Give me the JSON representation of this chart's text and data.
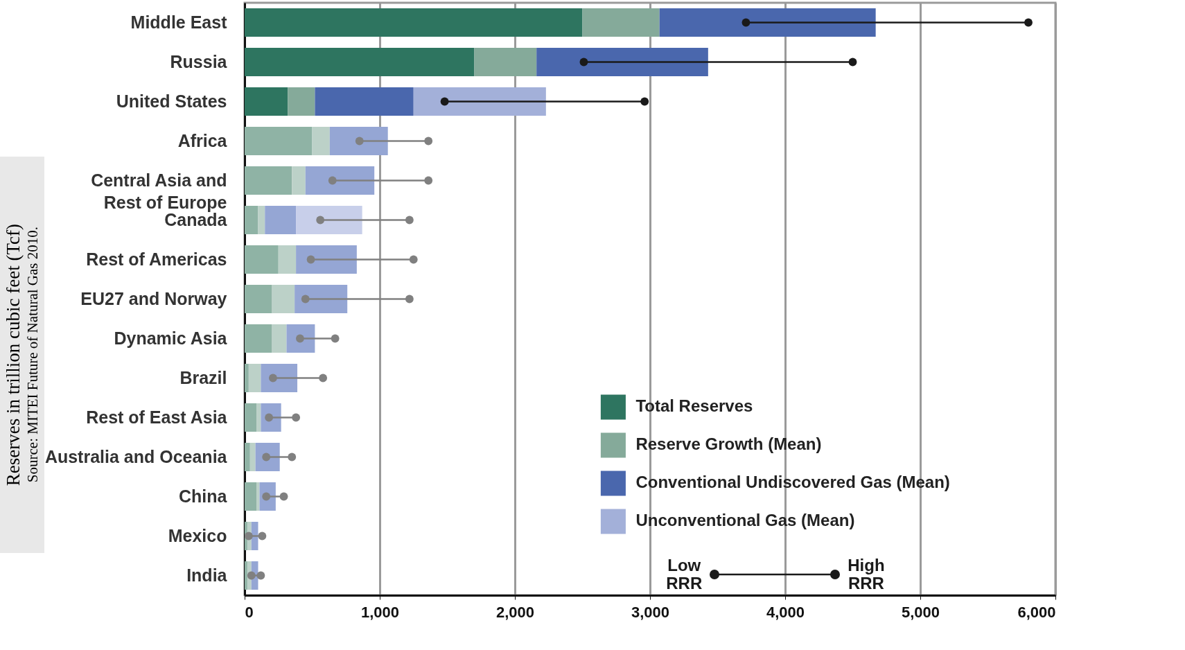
{
  "chart_data": {
    "type": "bar",
    "orientation": "horizontal",
    "stacked": true,
    "ylabel": "Reserves in trillion  cubic feet (Tcf)",
    "annotations": [
      "Source: MITEI Future of Natural Gas 2010."
    ],
    "categories": [
      "Middle East",
      "Russia",
      "United States",
      "Africa",
      "Central Asia and Rest of Europe",
      "Canada",
      "Rest of Americas",
      "EU27 and Norway",
      "Dynamic Asia",
      "Brazil",
      "Rest of East Asia",
      "Australia and Oceania",
      "China",
      "Mexico",
      "India"
    ],
    "series": [
      {
        "name": "Total Reserves",
        "color": "#2e7560",
        "values": [
          2500,
          1700,
          320,
          500,
          350,
          100,
          250,
          200,
          200,
          30,
          90,
          40,
          90,
          20,
          20
        ],
        "colors": [
          "#2e7560",
          "#2e7560",
          "#2e7560",
          "#8fb3a5",
          "#8fb3a5",
          "#8fb3a5",
          "#8fb3a5",
          "#8fb3a5",
          "#8fb3a5",
          "#8fb3a5",
          "#8fb3a5",
          "#8fb3a5",
          "#8fb3a5",
          "#8fb3a5",
          "#8fb3a5"
        ]
      },
      {
        "name": "Reserve Growth (Mean)",
        "color": "#85aa9a",
        "values": [
          570,
          460,
          200,
          130,
          100,
          50,
          130,
          170,
          110,
          90,
          30,
          40,
          20,
          30,
          30
        ],
        "colors": [
          "#85aa9a",
          "#85aa9a",
          "#85aa9a",
          "#bcd1c8",
          "#bcd1c8",
          "#bcd1c8",
          "#bcd1c8",
          "#bcd1c8",
          "#bcd1c8",
          "#bcd1c8",
          "#bcd1c8",
          "#bcd1c8",
          "#bcd1c8",
          "#bcd1c8",
          "#bcd1c8"
        ]
      },
      {
        "name": "Conventional Undiscovered Gas (Mean)",
        "color": "#4a67ad",
        "values": [
          1600,
          1270,
          730,
          430,
          510,
          230,
          450,
          390,
          210,
          270,
          150,
          180,
          120,
          50,
          50
        ],
        "colors": [
          "#4a67ad",
          "#4a67ad",
          "#4a67ad",
          "#95a6d4",
          "#95a6d4",
          "#95a6d4",
          "#95a6d4",
          "#95a6d4",
          "#95a6d4",
          "#95a6d4",
          "#95a6d4",
          "#95a6d4",
          "#95a6d4",
          "#95a6d4",
          "#95a6d4"
        ]
      },
      {
        "name": "Unconventional Gas (Mean)",
        "color": "#a3b0d9",
        "values": [
          0,
          0,
          980,
          0,
          0,
          490,
          0,
          0,
          0,
          0,
          0,
          0,
          0,
          0,
          0
        ],
        "colors": [
          "#a3b0d9",
          "#a3b0d9",
          "#a3b0d9",
          "#c8cfea",
          "#c8cfea",
          "#c8cfea",
          "#c8cfea",
          "#c8cfea",
          "#c8cfea",
          "#c8cfea",
          "#c8cfea",
          "#c8cfea",
          "#c8cfea",
          "#c8cfea",
          "#c8cfea"
        ]
      },
      {
        "name": "Low RRR",
        "type": "scatter",
        "color": "#1a1a1a",
        "values": [
          3710,
          2510,
          1480,
          850,
          650,
          560,
          490,
          450,
          410,
          210,
          180,
          160,
          160,
          30,
          50
        ],
        "colors": [
          "#1a1a1a",
          "#1a1a1a",
          "#1a1a1a",
          "#808080",
          "#808080",
          "#808080",
          "#808080",
          "#808080",
          "#808080",
          "#808080",
          "#808080",
          "#808080",
          "#808080",
          "#808080",
          "#808080"
        ]
      },
      {
        "name": "High RRR",
        "type": "scatter",
        "color": "#1a1a1a",
        "values": [
          5800,
          4500,
          2960,
          1360,
          1360,
          1220,
          1250,
          1220,
          670,
          580,
          380,
          350,
          290,
          130,
          120
        ],
        "colors": [
          "#1a1a1a",
          "#1a1a1a",
          "#1a1a1a",
          "#808080",
          "#808080",
          "#808080",
          "#808080",
          "#808080",
          "#808080",
          "#808080",
          "#808080",
          "#808080",
          "#808080",
          "#808080",
          "#808080"
        ]
      }
    ],
    "xlim": [
      0,
      6000
    ],
    "xticks": [
      0,
      {
        "value": 1000,
        "label": "1,000"
      },
      {
        "value": 2000,
        "label": "2,000"
      },
      {
        "value": 3000,
        "label": "3,000"
      },
      {
        "value": 4000,
        "label": "4,000"
      },
      {
        "value": 5000,
        "label": "5,000"
      },
      {
        "value": 6000,
        "label": "6,000"
      }
    ],
    "grid": "x",
    "legend": "bottom right",
    "marker": "circle"
  }
}
